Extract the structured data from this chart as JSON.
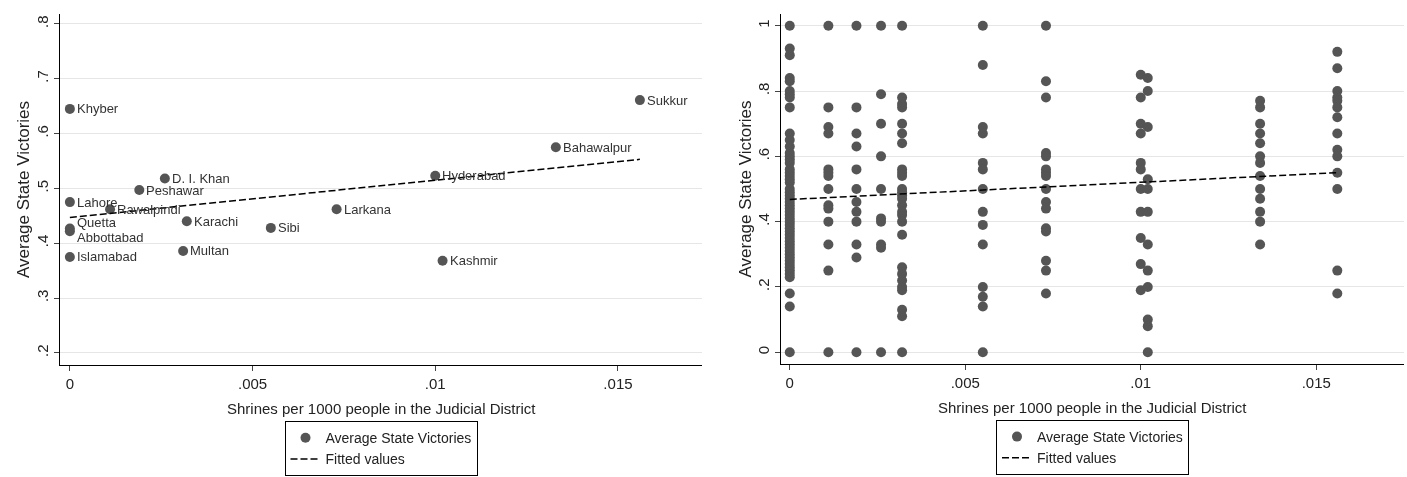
{
  "chart_data": [
    {
      "type": "scatter",
      "xlabel": "Shrines per 1000 people in the Judicial District",
      "ylabel": "Average State Victories",
      "xlim": [
        -0.00027,
        0.0173
      ],
      "ylim": [
        0.178,
        0.818
      ],
      "xticks": [
        0,
        {
          "value": 0.005,
          "label": ".005"
        },
        {
          "value": 0.01,
          "label": ".01"
        },
        {
          "value": 0.015,
          "label": ".015"
        }
      ],
      "yticks": [
        {
          "value": 0.2,
          "label": ".2"
        },
        {
          "value": 0.3,
          "label": ".3"
        },
        {
          "value": 0.4,
          "label": ".4"
        },
        {
          "value": 0.5,
          "label": ".5"
        },
        {
          "value": 0.6,
          "label": ".6"
        },
        {
          "value": 0.7,
          "label": ".7"
        },
        {
          "value": 0.8,
          "label": ".8"
        }
      ],
      "grid": "y",
      "legend": "bottom",
      "series": [
        {
          "name": "Average State Victories",
          "marker": "circle",
          "color": "#555555",
          "x": [
            0,
            0.0156,
            0.0133,
            0.0026,
            0.01,
            0.0019,
            0,
            0.0011,
            0.0073,
            0.0032,
            0.0055,
            0,
            0,
            0.0031,
            0,
            0.0102
          ],
          "values": [
            0.645,
            0.661,
            0.575,
            0.518,
            0.523,
            0.497,
            0.475,
            0.462,
            0.462,
            0.44,
            0.428,
            0.427,
            0.422,
            0.386,
            0.375,
            0.368
          ]
        },
        {
          "name": "Fitted values",
          "type": "line",
          "line_style": "dashed",
          "color": "#000000",
          "x": [
            0,
            0.0156
          ],
          "values": [
            0.447,
            0.553
          ]
        }
      ],
      "annotations": [
        {
          "text": "Khyber",
          "x": 0,
          "y": 0.645
        },
        {
          "text": "Sukkur",
          "x": 0.0156,
          "y": 0.661
        },
        {
          "text": "Bahawalpur",
          "x": 0.0133,
          "y": 0.575
        },
        {
          "text": "D. I. Khan",
          "x": 0.0026,
          "y": 0.518
        },
        {
          "text": "Hyderabad",
          "x": 0.01,
          "y": 0.523
        },
        {
          "text": "Peshawar",
          "x": 0.0019,
          "y": 0.497
        },
        {
          "text": "Lahore",
          "x": 0,
          "y": 0.475
        },
        {
          "text": "Rawalpindi",
          "x": 0.0011,
          "y": 0.462
        },
        {
          "text": "Larkana",
          "x": 0.0073,
          "y": 0.462
        },
        {
          "text": "Karachi",
          "x": 0.0032,
          "y": 0.44
        },
        {
          "text": "Sibi",
          "x": 0.0055,
          "y": 0.428
        },
        {
          "text": "Quetta",
          "x": 0,
          "y": 0.427
        },
        {
          "text": "Abbottabad",
          "x": 0,
          "y": 0.422
        },
        {
          "text": "Multan",
          "x": 0.0031,
          "y": 0.386
        },
        {
          "text": "Islamabad",
          "x": 0,
          "y": 0.375
        },
        {
          "text": "Kashmir",
          "x": 0.0102,
          "y": 0.368
        }
      ]
    },
    {
      "type": "scatter",
      "xlabel": "Shrines per 1000 people in the Judicial District",
      "ylabel": "Average State Victories",
      "xlim": [
        -0.00025,
        0.0175
      ],
      "ylim": [
        -0.036,
        1.036
      ],
      "xticks": [
        0,
        {
          "value": 0.005,
          "label": ".005"
        },
        {
          "value": 0.01,
          "label": ".01"
        },
        {
          "value": 0.015,
          "label": ".015"
        }
      ],
      "yticks": [
        0,
        {
          "value": 0.2,
          "label": ".2"
        },
        {
          "value": 0.4,
          "label": ".4"
        },
        {
          "value": 0.6,
          "label": ".6"
        },
        {
          "value": 0.8,
          "label": ".8"
        },
        1
      ],
      "grid": "y",
      "legend": "bottom",
      "series": [
        {
          "name": "Average State Victories",
          "marker": "circle",
          "color": "#555555",
          "x": [
            0,
            0,
            0,
            0,
            0,
            0,
            0,
            0,
            0,
            0,
            0,
            0,
            0,
            0,
            0,
            0,
            0,
            0,
            0,
            0,
            0,
            0,
            0,
            0,
            0,
            0,
            0,
            0,
            0,
            0,
            0,
            0,
            0,
            0,
            0,
            0,
            0,
            0,
            0,
            0,
            0,
            0,
            0,
            0,
            0,
            0,
            0,
            0,
            0,
            0,
            0,
            0,
            0.0011,
            0.0011,
            0.0011,
            0.0011,
            0.0011,
            0.0011,
            0.0011,
            0.0011,
            0.0011,
            0.0011,
            0.0011,
            0.0011,
            0.0011,
            0.0011,
            0.0019,
            0.0019,
            0.0019,
            0.0019,
            0.0019,
            0.0019,
            0.0019,
            0.0019,
            0.0019,
            0.0019,
            0.0019,
            0.0019,
            0.0026,
            0.0026,
            0.0026,
            0.0026,
            0.0026,
            0.0026,
            0.0026,
            0.0026,
            0.0026,
            0.0026,
            0.0032,
            0.0032,
            0.0032,
            0.0032,
            0.0032,
            0.0032,
            0.0032,
            0.0032,
            0.0032,
            0.0032,
            0.0032,
            0.0032,
            0.0032,
            0.0032,
            0.0032,
            0.0032,
            0.0032,
            0.0032,
            0.0032,
            0.0032,
            0.0032,
            0.0032,
            0.0032,
            0.0032,
            0.0032,
            0.0032,
            0.0032,
            0.0055,
            0.0055,
            0.0055,
            0.0055,
            0.0055,
            0.0055,
            0.0055,
            0.0055,
            0.0055,
            0.0055,
            0.0055,
            0.0055,
            0.0055,
            0.0055,
            0.0073,
            0.0073,
            0.0073,
            0.0073,
            0.0073,
            0.0073,
            0.0073,
            0.0073,
            0.0073,
            0.0073,
            0.0073,
            0.0073,
            0.0073,
            0.0073,
            0.0073,
            0.0073,
            0.01,
            0.01,
            0.01,
            0.01,
            0.01,
            0.01,
            0.01,
            0.01,
            0.01,
            0.01,
            0.01,
            0.0102,
            0.0102,
            0.0102,
            0.0102,
            0.0102,
            0.0102,
            0.0102,
            0.0102,
            0.0102,
            0.0102,
            0.0102,
            0.0102,
            0.0134,
            0.0134,
            0.0134,
            0.0134,
            0.0134,
            0.0134,
            0.0134,
            0.0134,
            0.0134,
            0.0134,
            0.0134,
            0.0134,
            0.0134,
            0.0156,
            0.0156,
            0.0156,
            0.0156,
            0.0156,
            0.0156,
            0.0156,
            0.0156,
            0.0156,
            0.0156,
            0.0156,
            0.0156,
            0.0156,
            0.0156
          ],
          "values": [
            1,
            0.93,
            0.91,
            0.84,
            0.83,
            0.8,
            0.79,
            0.78,
            0.75,
            0.67,
            0.65,
            0.63,
            0.61,
            0.6,
            0.59,
            0.58,
            0.56,
            0.55,
            0.54,
            0.53,
            0.52,
            0.5,
            0.49,
            0.48,
            0.47,
            0.46,
            0.45,
            0.44,
            0.43,
            0.42,
            0.41,
            0.4,
            0.39,
            0.38,
            0.37,
            0.36,
            0.35,
            0.34,
            0.33,
            0.32,
            0.31,
            0.3,
            0.29,
            0.28,
            0.27,
            0.26,
            0.25,
            0.24,
            0.23,
            0.18,
            0.14,
            0,
            1,
            0.75,
            0.69,
            0.67,
            0.56,
            0.55,
            0.54,
            0.5,
            0.45,
            0.44,
            0.4,
            0.33,
            0.25,
            0,
            1,
            0.75,
            0.67,
            0.63,
            0.56,
            0.5,
            0.46,
            0.43,
            0.4,
            0.33,
            0.29,
            0,
            1,
            0.79,
            0.7,
            0.6,
            0.5,
            0.41,
            0.4,
            0.33,
            0.32,
            0,
            1,
            0.78,
            0.76,
            0.75,
            0.7,
            0.67,
            0.64,
            0.56,
            0.55,
            0.54,
            0.5,
            0.49,
            0.48,
            0.47,
            0.45,
            0.43,
            0.42,
            0.4,
            0.36,
            0.26,
            0.24,
            0.22,
            0.2,
            0.19,
            0.13,
            0.11,
            0,
            1,
            0.88,
            0.69,
            0.67,
            0.58,
            0.56,
            0.5,
            0.43,
            0.39,
            0.33,
            0.2,
            0.17,
            0.14,
            0,
            1,
            0.83,
            0.78,
            0.61,
            0.6,
            0.56,
            0.55,
            0.54,
            0.5,
            0.46,
            0.44,
            0.38,
            0.37,
            0.28,
            0.25,
            0.18,
            0.85,
            0.78,
            0.7,
            0.67,
            0.58,
            0.56,
            0.5,
            0.43,
            0.35,
            0.27,
            0.19,
            0.84,
            0.8,
            0.69,
            0.53,
            0.5,
            0.43,
            0.33,
            0.25,
            0.2,
            0.1,
            0.08,
            0,
            0.77,
            0.75,
            0.7,
            0.67,
            0.64,
            0.6,
            0.58,
            0.54,
            0.5,
            0.47,
            0.43,
            0.4,
            0.33,
            0.92,
            0.87,
            0.8,
            0.78,
            0.77,
            0.75,
            0.72,
            0.67,
            0.62,
            0.6,
            0.55,
            0.5,
            0.25,
            0.18
          ]
        },
        {
          "name": "Fitted values",
          "type": "line",
          "line_style": "dashed",
          "color": "#000000",
          "x": [
            0,
            0.0156
          ],
          "values": [
            0.468,
            0.55
          ]
        }
      ]
    }
  ]
}
